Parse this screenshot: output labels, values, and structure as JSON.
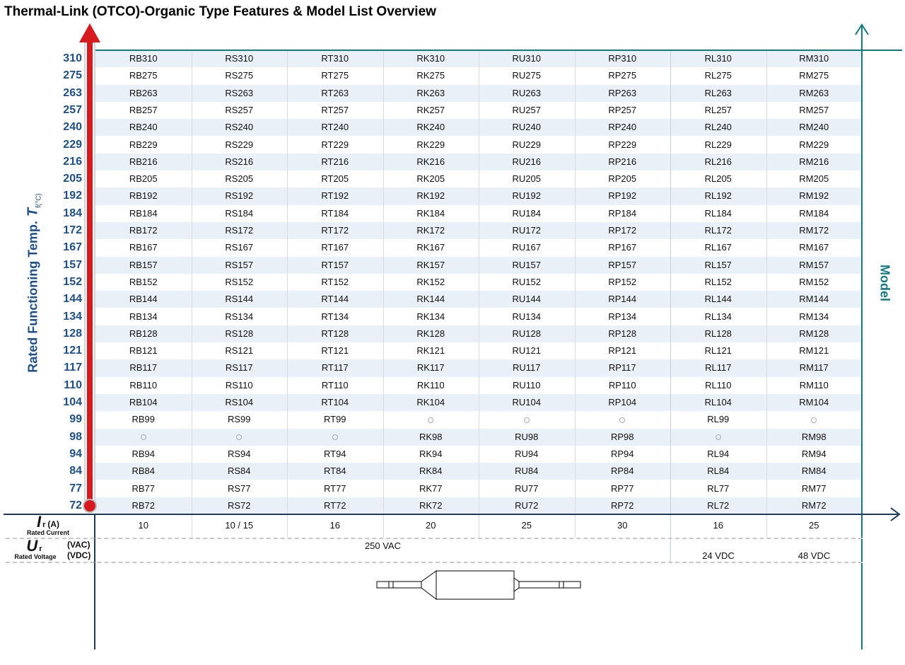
{
  "title": "Thermal-Link (OTCO)-Organic Type Features & Model List Overview",
  "y_axis": {
    "label": "Rated Functioning Temp.",
    "symbol": "T",
    "sub": "f",
    "unit": "(°C)"
  },
  "model_axis_label": "Model",
  "series_prefixes": [
    "RB",
    "RS",
    "RT",
    "RK",
    "RU",
    "RP",
    "RL",
    "RM"
  ],
  "temperatures": [
    310,
    275,
    263,
    257,
    240,
    229,
    216,
    205,
    192,
    184,
    172,
    167,
    157,
    152,
    144,
    134,
    128,
    121,
    117,
    110,
    104,
    99,
    98,
    94,
    84,
    77,
    72
  ],
  "missing": {
    "99": [
      "RK",
      "RU",
      "RP",
      "RM"
    ],
    "98": [
      "RB",
      "RS",
      "RT",
      "RL"
    ]
  },
  "rated_current": {
    "symbol": "I",
    "sub": "r",
    "unit": "(A)",
    "label": "Rated Current",
    "values": [
      "10",
      "10 / 15",
      "16",
      "20",
      "25",
      "30",
      "16",
      "25"
    ]
  },
  "rated_voltage": {
    "symbol": "U",
    "sub": "r",
    "unit_ac": "(VAC)",
    "unit_dc": "(VDC)",
    "label": "Rated Voltage",
    "vac": "250 VAC",
    "vdc_rl": "24 VDC",
    "vdc_rm": "48 VDC"
  },
  "colors": {
    "navy": "#1d3a5c",
    "teal": "#137a80",
    "red": "#d71920",
    "temp_text": "#1d4f8c",
    "shade": "#eaf0f7"
  }
}
